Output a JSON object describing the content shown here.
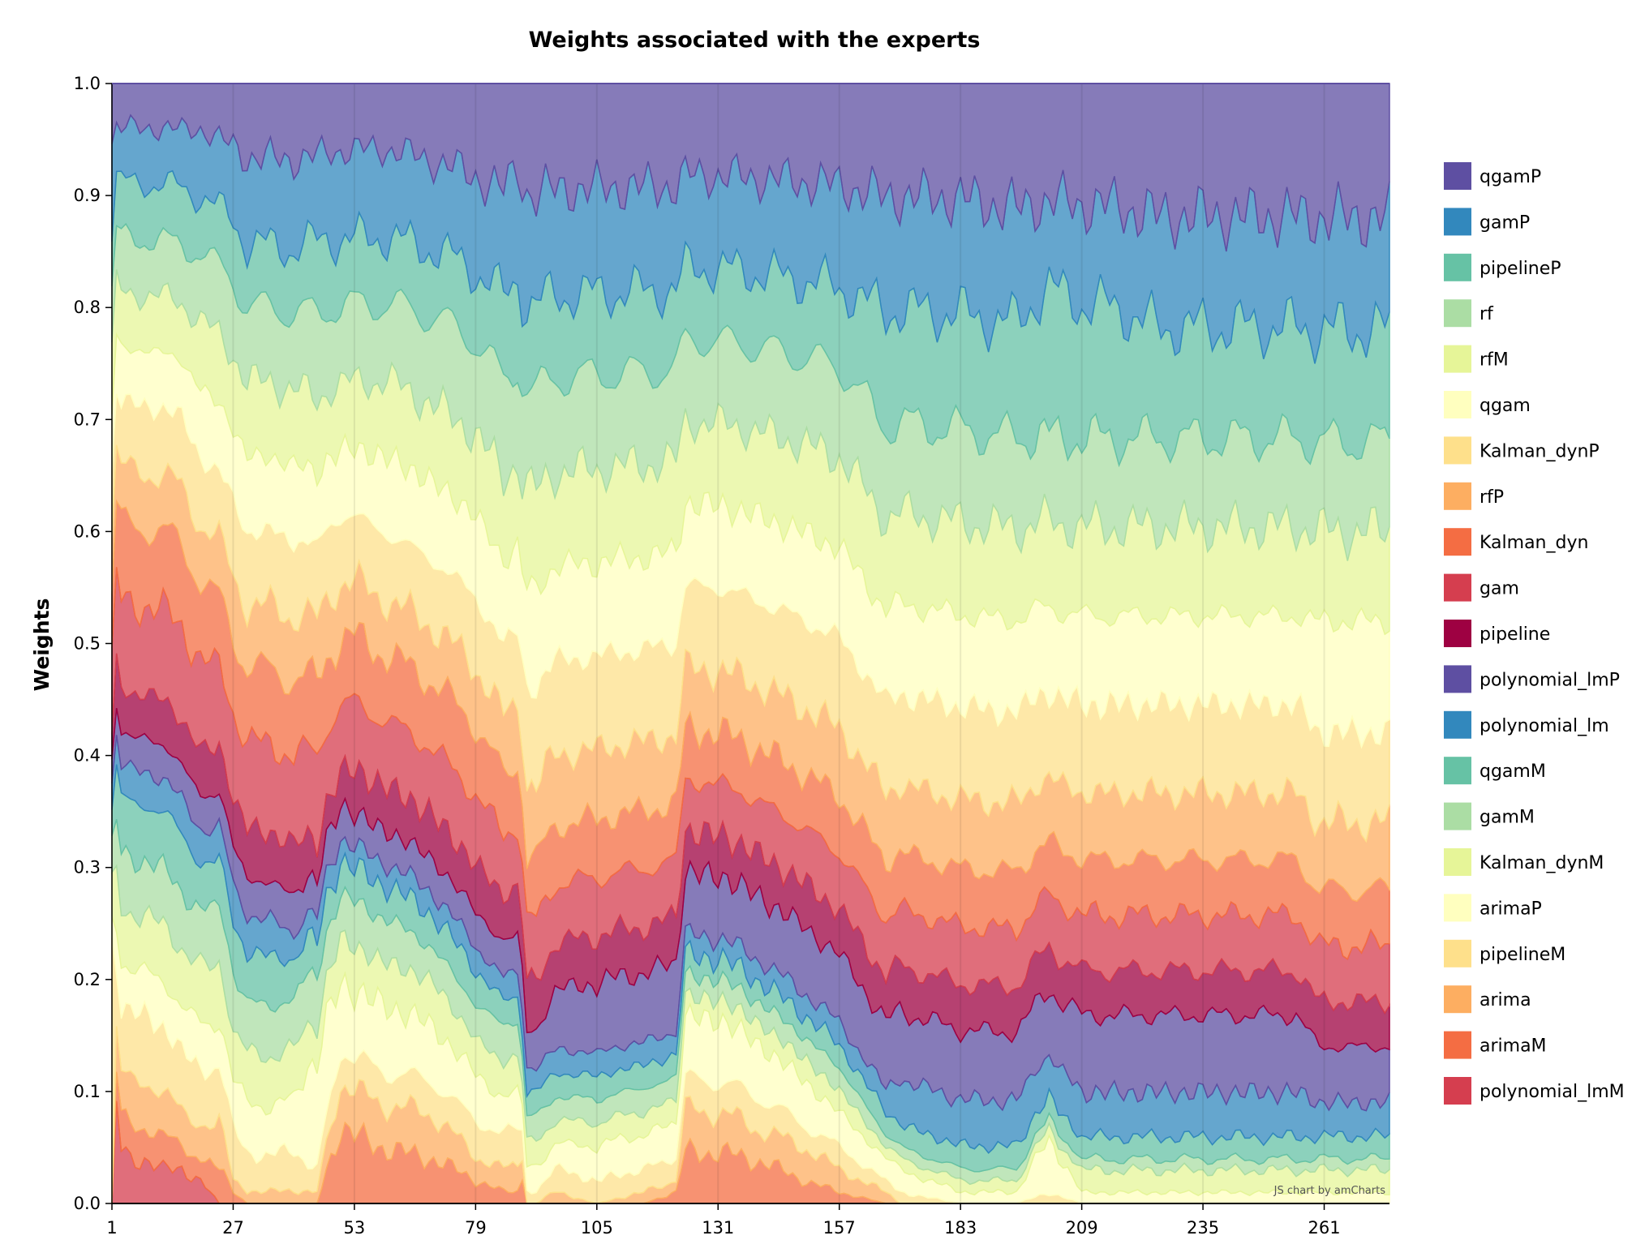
{
  "chart_data": {
    "type": "area",
    "stacked": true,
    "normalized": true,
    "title": "Weights associated with the experts",
    "xlabel": "",
    "ylabel": "Weights",
    "xlim": [
      1,
      275
    ],
    "ylim": [
      0,
      1
    ],
    "x_ticks": [
      "1",
      "27",
      "53",
      "79",
      "105",
      "131",
      "157",
      "183",
      "209",
      "235",
      "261"
    ],
    "y_ticks": [
      "0.0",
      "0.1",
      "0.2",
      "0.3",
      "0.4",
      "0.5",
      "0.6",
      "0.7",
      "0.8",
      "0.9",
      "1.0"
    ],
    "grid": true,
    "legend_position": "right",
    "credit": "JS chart by amCharts",
    "x_breakpoints": [
      1,
      2,
      3,
      5,
      8,
      12,
      16,
      20,
      24,
      27,
      30,
      35,
      40,
      45,
      50,
      53,
      60,
      70,
      79,
      85,
      88,
      89,
      90,
      92,
      96,
      105,
      115,
      122,
      124,
      131,
      140,
      150,
      157,
      167,
      170,
      183,
      195,
      202,
      209,
      215,
      225,
      235,
      245,
      255,
      260,
      265,
      275
    ],
    "series": [
      {
        "name": "polynomial_lmM",
        "color": "#d53e4f",
        "values": [
          0.0,
          0.09,
          0.05,
          0.04,
          0.04,
          0.03,
          0.03,
          0.02,
          0.0,
          0.0,
          0.0,
          0.0,
          0.0,
          0.0,
          0.0,
          0.0,
          0.0,
          0.0,
          0.0,
          0.0,
          0.0,
          0.0,
          0.0,
          0.0,
          0.0,
          0.0,
          0.0,
          0.0,
          0.0,
          0.0,
          0.0,
          0.0,
          0.0,
          0.0,
          0.0,
          0.0,
          0.0,
          0.0,
          0.0,
          0.0,
          0.0,
          0.0,
          0.0,
          0.0,
          0.0,
          0.0,
          0.0
        ]
      },
      {
        "name": "arimaM",
        "color": "#f46d43",
        "values": [
          0.0,
          0.03,
          0.03,
          0.03,
          0.03,
          0.03,
          0.02,
          0.02,
          0.03,
          0.01,
          0.0,
          0.0,
          0.0,
          0.0,
          0.07,
          0.06,
          0.05,
          0.04,
          0.02,
          0.01,
          0.01,
          0.02,
          0.0,
          0.0,
          0.0,
          0.0,
          0.0,
          0.01,
          0.05,
          0.05,
          0.04,
          0.02,
          0.01,
          0.0,
          0.0,
          0.0,
          0.0,
          0.0,
          0.0,
          0.0,
          0.0,
          0.0,
          0.0,
          0.0,
          0.0,
          0.0,
          0.0
        ]
      },
      {
        "name": "arima",
        "color": "#fdae61",
        "values": [
          0.0,
          0.04,
          0.04,
          0.04,
          0.04,
          0.04,
          0.03,
          0.03,
          0.04,
          0.01,
          0.01,
          0.01,
          0.01,
          0.01,
          0.04,
          0.04,
          0.04,
          0.04,
          0.02,
          0.02,
          0.02,
          0.02,
          0.0,
          0.0,
          0.01,
          0.0,
          0.01,
          0.01,
          0.04,
          0.04,
          0.03,
          0.03,
          0.02,
          0.01,
          0.0,
          0.0,
          0.0,
          0.0,
          0.0,
          0.0,
          0.0,
          0.0,
          0.0,
          0.0,
          0.0,
          0.0,
          0.0
        ]
      },
      {
        "name": "pipelineM",
        "color": "#fee08b",
        "values": [
          0.2,
          0.06,
          0.06,
          0.06,
          0.06,
          0.06,
          0.05,
          0.05,
          0.05,
          0.04,
          0.03,
          0.03,
          0.03,
          0.02,
          0.03,
          0.03,
          0.03,
          0.03,
          0.03,
          0.03,
          0.03,
          0.02,
          0.01,
          0.01,
          0.02,
          0.02,
          0.02,
          0.02,
          0.03,
          0.03,
          0.03,
          0.02,
          0.02,
          0.01,
          0.01,
          0.0,
          0.0,
          0.01,
          0.0,
          0.0,
          0.0,
          0.0,
          0.0,
          0.0,
          0.0,
          0.0,
          0.0
        ]
      },
      {
        "name": "arimaP",
        "color": "#ffffbf",
        "values": [
          0.02,
          0.04,
          0.04,
          0.04,
          0.04,
          0.04,
          0.04,
          0.04,
          0.04,
          0.04,
          0.04,
          0.04,
          0.04,
          0.1,
          0.06,
          0.06,
          0.06,
          0.05,
          0.04,
          0.03,
          0.03,
          0.02,
          0.02,
          0.02,
          0.02,
          0.03,
          0.03,
          0.03,
          0.06,
          0.06,
          0.05,
          0.04,
          0.03,
          0.02,
          0.02,
          0.01,
          0.01,
          0.05,
          0.01,
          0.01,
          0.01,
          0.01,
          0.01,
          0.01,
          0.01,
          0.01,
          0.01
        ]
      },
      {
        "name": "Kalman_dynM",
        "color": "#e6f598",
        "values": [
          0.03,
          0.05,
          0.05,
          0.05,
          0.05,
          0.05,
          0.05,
          0.05,
          0.05,
          0.04,
          0.04,
          0.04,
          0.04,
          0.03,
          0.04,
          0.04,
          0.04,
          0.04,
          0.03,
          0.03,
          0.03,
          0.02,
          0.02,
          0.02,
          0.02,
          0.02,
          0.02,
          0.02,
          0.02,
          0.02,
          0.02,
          0.02,
          0.02,
          0.01,
          0.01,
          0.01,
          0.01,
          0.01,
          0.02,
          0.02,
          0.02,
          0.02,
          0.02,
          0.02,
          0.02,
          0.02,
          0.02
        ]
      },
      {
        "name": "gamM",
        "color": "#abdda4",
        "values": [
          0.03,
          0.05,
          0.05,
          0.05,
          0.05,
          0.05,
          0.05,
          0.05,
          0.05,
          0.05,
          0.04,
          0.04,
          0.04,
          0.04,
          0.04,
          0.04,
          0.04,
          0.03,
          0.03,
          0.03,
          0.03,
          0.02,
          0.02,
          0.02,
          0.02,
          0.02,
          0.02,
          0.02,
          0.02,
          0.02,
          0.02,
          0.02,
          0.02,
          0.01,
          0.01,
          0.01,
          0.01,
          0.01,
          0.01,
          0.01,
          0.01,
          0.01,
          0.01,
          0.01,
          0.01,
          0.01,
          0.01
        ]
      },
      {
        "name": "qgamM",
        "color": "#66c2a5",
        "values": [
          0.03,
          0.05,
          0.05,
          0.05,
          0.05,
          0.05,
          0.05,
          0.04,
          0.04,
          0.04,
          0.04,
          0.04,
          0.03,
          0.03,
          0.03,
          0.03,
          0.03,
          0.03,
          0.03,
          0.02,
          0.02,
          0.02,
          0.02,
          0.02,
          0.02,
          0.02,
          0.02,
          0.02,
          0.02,
          0.02,
          0.02,
          0.02,
          0.02,
          0.02,
          0.02,
          0.02,
          0.02,
          0.02,
          0.02,
          0.02,
          0.02,
          0.02,
          0.02,
          0.02,
          0.02,
          0.02,
          0.02
        ]
      },
      {
        "name": "polynomial_lm",
        "color": "#3288bd",
        "values": [
          0.02,
          0.03,
          0.03,
          0.03,
          0.03,
          0.03,
          0.03,
          0.03,
          0.03,
          0.03,
          0.03,
          0.03,
          0.02,
          0.02,
          0.02,
          0.02,
          0.02,
          0.02,
          0.02,
          0.02,
          0.02,
          0.02,
          0.02,
          0.02,
          0.02,
          0.02,
          0.02,
          0.02,
          0.02,
          0.02,
          0.02,
          0.02,
          0.02,
          0.02,
          0.04,
          0.04,
          0.04,
          0.04,
          0.04,
          0.04,
          0.04,
          0.04,
          0.04,
          0.04,
          0.03,
          0.03,
          0.03
        ]
      },
      {
        "name": "polynomial_lmP",
        "color": "#5e4fa2",
        "values": [
          0.02,
          0.03,
          0.03,
          0.03,
          0.03,
          0.03,
          0.03,
          0.03,
          0.03,
          0.03,
          0.03,
          0.03,
          0.03,
          0.03,
          0.03,
          0.03,
          0.03,
          0.03,
          0.03,
          0.03,
          0.03,
          0.03,
          0.03,
          0.03,
          0.05,
          0.06,
          0.06,
          0.06,
          0.06,
          0.06,
          0.06,
          0.06,
          0.06,
          0.06,
          0.06,
          0.06,
          0.06,
          0.06,
          0.07,
          0.07,
          0.07,
          0.07,
          0.07,
          0.07,
          0.05,
          0.05,
          0.05
        ]
      },
      {
        "name": "pipeline",
        "color": "#9e0142",
        "values": [
          0.02,
          0.04,
          0.04,
          0.04,
          0.04,
          0.04,
          0.04,
          0.04,
          0.04,
          0.04,
          0.04,
          0.04,
          0.04,
          0.03,
          0.03,
          0.04,
          0.04,
          0.04,
          0.04,
          0.04,
          0.04,
          0.04,
          0.04,
          0.04,
          0.04,
          0.04,
          0.04,
          0.04,
          0.04,
          0.04,
          0.04,
          0.04,
          0.04,
          0.04,
          0.04,
          0.04,
          0.04,
          0.04,
          0.04,
          0.04,
          0.04,
          0.04,
          0.04,
          0.04,
          0.04,
          0.04,
          0.04
        ]
      },
      {
        "name": "gam",
        "color": "#d53e4f",
        "values": [
          0.06,
          0.08,
          0.08,
          0.08,
          0.08,
          0.08,
          0.08,
          0.08,
          0.07,
          0.07,
          0.07,
          0.07,
          0.07,
          0.07,
          0.06,
          0.06,
          0.06,
          0.06,
          0.06,
          0.05,
          0.05,
          0.05,
          0.05,
          0.05,
          0.05,
          0.05,
          0.05,
          0.05,
          0.05,
          0.05,
          0.05,
          0.05,
          0.05,
          0.05,
          0.05,
          0.05,
          0.05,
          0.05,
          0.05,
          0.05,
          0.05,
          0.05,
          0.05,
          0.05,
          0.05,
          0.05,
          0.05
        ]
      },
      {
        "name": "Kalman_dyn",
        "color": "#f46d43",
        "values": [
          0.06,
          0.07,
          0.07,
          0.07,
          0.07,
          0.07,
          0.07,
          0.07,
          0.06,
          0.06,
          0.06,
          0.06,
          0.06,
          0.06,
          0.06,
          0.06,
          0.06,
          0.06,
          0.06,
          0.05,
          0.05,
          0.05,
          0.05,
          0.05,
          0.05,
          0.05,
          0.05,
          0.05,
          0.05,
          0.05,
          0.05,
          0.05,
          0.05,
          0.05,
          0.05,
          0.05,
          0.05,
          0.05,
          0.05,
          0.05,
          0.05,
          0.05,
          0.05,
          0.05,
          0.05,
          0.05,
          0.05
        ]
      },
      {
        "name": "rfP",
        "color": "#fdae61",
        "values": [
          0.05,
          0.05,
          0.05,
          0.05,
          0.05,
          0.05,
          0.05,
          0.05,
          0.05,
          0.05,
          0.05,
          0.05,
          0.05,
          0.05,
          0.05,
          0.05,
          0.05,
          0.05,
          0.05,
          0.05,
          0.05,
          0.05,
          0.06,
          0.06,
          0.06,
          0.06,
          0.06,
          0.06,
          0.06,
          0.06,
          0.06,
          0.06,
          0.06,
          0.06,
          0.06,
          0.06,
          0.06,
          0.06,
          0.06,
          0.06,
          0.06,
          0.06,
          0.06,
          0.06,
          0.06,
          0.06,
          0.06
        ]
      },
      {
        "name": "Kalman_dynP",
        "color": "#fee08b",
        "values": [
          0.05,
          0.06,
          0.06,
          0.06,
          0.06,
          0.06,
          0.06,
          0.06,
          0.06,
          0.06,
          0.06,
          0.06,
          0.06,
          0.06,
          0.06,
          0.06,
          0.06,
          0.06,
          0.06,
          0.06,
          0.06,
          0.06,
          0.08,
          0.08,
          0.08,
          0.08,
          0.08,
          0.08,
          0.08,
          0.08,
          0.08,
          0.08,
          0.08,
          0.08,
          0.08,
          0.08,
          0.08,
          0.08,
          0.08,
          0.08,
          0.08,
          0.08,
          0.08,
          0.08,
          0.08,
          0.08,
          0.08
        ]
      },
      {
        "name": "qgam",
        "color": "#ffffbf",
        "values": [
          0.05,
          0.05,
          0.05,
          0.05,
          0.05,
          0.05,
          0.05,
          0.06,
          0.06,
          0.06,
          0.06,
          0.06,
          0.06,
          0.06,
          0.06,
          0.06,
          0.07,
          0.07,
          0.07,
          0.07,
          0.07,
          0.07,
          0.08,
          0.08,
          0.08,
          0.08,
          0.08,
          0.08,
          0.08,
          0.08,
          0.08,
          0.08,
          0.08,
          0.08,
          0.08,
          0.08,
          0.08,
          0.08,
          0.08,
          0.08,
          0.08,
          0.08,
          0.08,
          0.08,
          0.1,
          0.1,
          0.1
        ]
      },
      {
        "name": "rfM",
        "color": "#e6f598",
        "values": [
          0.05,
          0.05,
          0.05,
          0.05,
          0.05,
          0.05,
          0.05,
          0.06,
          0.06,
          0.06,
          0.06,
          0.06,
          0.06,
          0.06,
          0.06,
          0.06,
          0.07,
          0.07,
          0.07,
          0.07,
          0.07,
          0.07,
          0.08,
          0.08,
          0.08,
          0.08,
          0.08,
          0.08,
          0.08,
          0.08,
          0.08,
          0.08,
          0.08,
          0.08,
          0.08,
          0.08,
          0.08,
          0.08,
          0.08,
          0.08,
          0.08,
          0.08,
          0.08,
          0.08,
          0.08,
          0.08,
          0.08
        ]
      },
      {
        "name": "rf",
        "color": "#abdda4",
        "values": [
          0.05,
          0.05,
          0.05,
          0.05,
          0.05,
          0.05,
          0.05,
          0.06,
          0.06,
          0.06,
          0.06,
          0.06,
          0.06,
          0.07,
          0.07,
          0.07,
          0.07,
          0.08,
          0.08,
          0.08,
          0.08,
          0.08,
          0.08,
          0.08,
          0.08,
          0.08,
          0.08,
          0.08,
          0.08,
          0.08,
          0.08,
          0.08,
          0.08,
          0.08,
          0.08,
          0.08,
          0.08,
          0.08,
          0.08,
          0.08,
          0.08,
          0.08,
          0.08,
          0.08,
          0.08,
          0.08,
          0.08
        ]
      },
      {
        "name": "pipelineP",
        "color": "#66c2a5",
        "values": [
          0.05,
          0.05,
          0.05,
          0.05,
          0.05,
          0.05,
          0.05,
          0.05,
          0.05,
          0.05,
          0.05,
          0.05,
          0.05,
          0.06,
          0.06,
          0.06,
          0.06,
          0.06,
          0.06,
          0.07,
          0.07,
          0.07,
          0.07,
          0.07,
          0.07,
          0.07,
          0.07,
          0.07,
          0.07,
          0.07,
          0.07,
          0.07,
          0.07,
          0.1,
          0.1,
          0.1,
          0.1,
          0.14,
          0.12,
          0.12,
          0.1,
          0.1,
          0.1,
          0.1,
          0.1,
          0.1,
          0.1
        ]
      },
      {
        "name": "gamP",
        "color": "#3288bd",
        "values": [
          0.07,
          0.05,
          0.05,
          0.05,
          0.05,
          0.05,
          0.05,
          0.06,
          0.06,
          0.06,
          0.07,
          0.07,
          0.07,
          0.07,
          0.08,
          0.08,
          0.08,
          0.08,
          0.08,
          0.09,
          0.09,
          0.09,
          0.09,
          0.09,
          0.09,
          0.09,
          0.09,
          0.09,
          0.09,
          0.09,
          0.09,
          0.09,
          0.09,
          0.1,
          0.1,
          0.1,
          0.1,
          0.08,
          0.09,
          0.09,
          0.1,
          0.1,
          0.1,
          0.1,
          0.1,
          0.1,
          0.1
        ]
      },
      {
        "name": "qgamP",
        "color": "#5e4fa2",
        "values": [
          0.05,
          0.04,
          0.04,
          0.04,
          0.04,
          0.04,
          0.04,
          0.04,
          0.05,
          0.05,
          0.06,
          0.06,
          0.06,
          0.06,
          0.06,
          0.06,
          0.06,
          0.07,
          0.08,
          0.09,
          0.07,
          0.08,
          0.09,
          0.09,
          0.09,
          0.09,
          0.09,
          0.09,
          0.09,
          0.09,
          0.09,
          0.09,
          0.09,
          0.1,
          0.1,
          0.1,
          0.11,
          0.11,
          0.11,
          0.11,
          0.12,
          0.12,
          0.12,
          0.12,
          0.12,
          0.12,
          0.12
        ]
      }
    ],
    "legend_order": [
      "qgamP",
      "gamP",
      "pipelineP",
      "rf",
      "rfM",
      "qgam",
      "Kalman_dynP",
      "rfP",
      "Kalman_dyn",
      "gam",
      "pipeline",
      "polynomial_lmP",
      "polynomial_lm",
      "qgamM",
      "gamM",
      "Kalman_dynM",
      "arimaP",
      "pipelineM",
      "arima",
      "arimaM",
      "polynomial_lmM"
    ]
  }
}
